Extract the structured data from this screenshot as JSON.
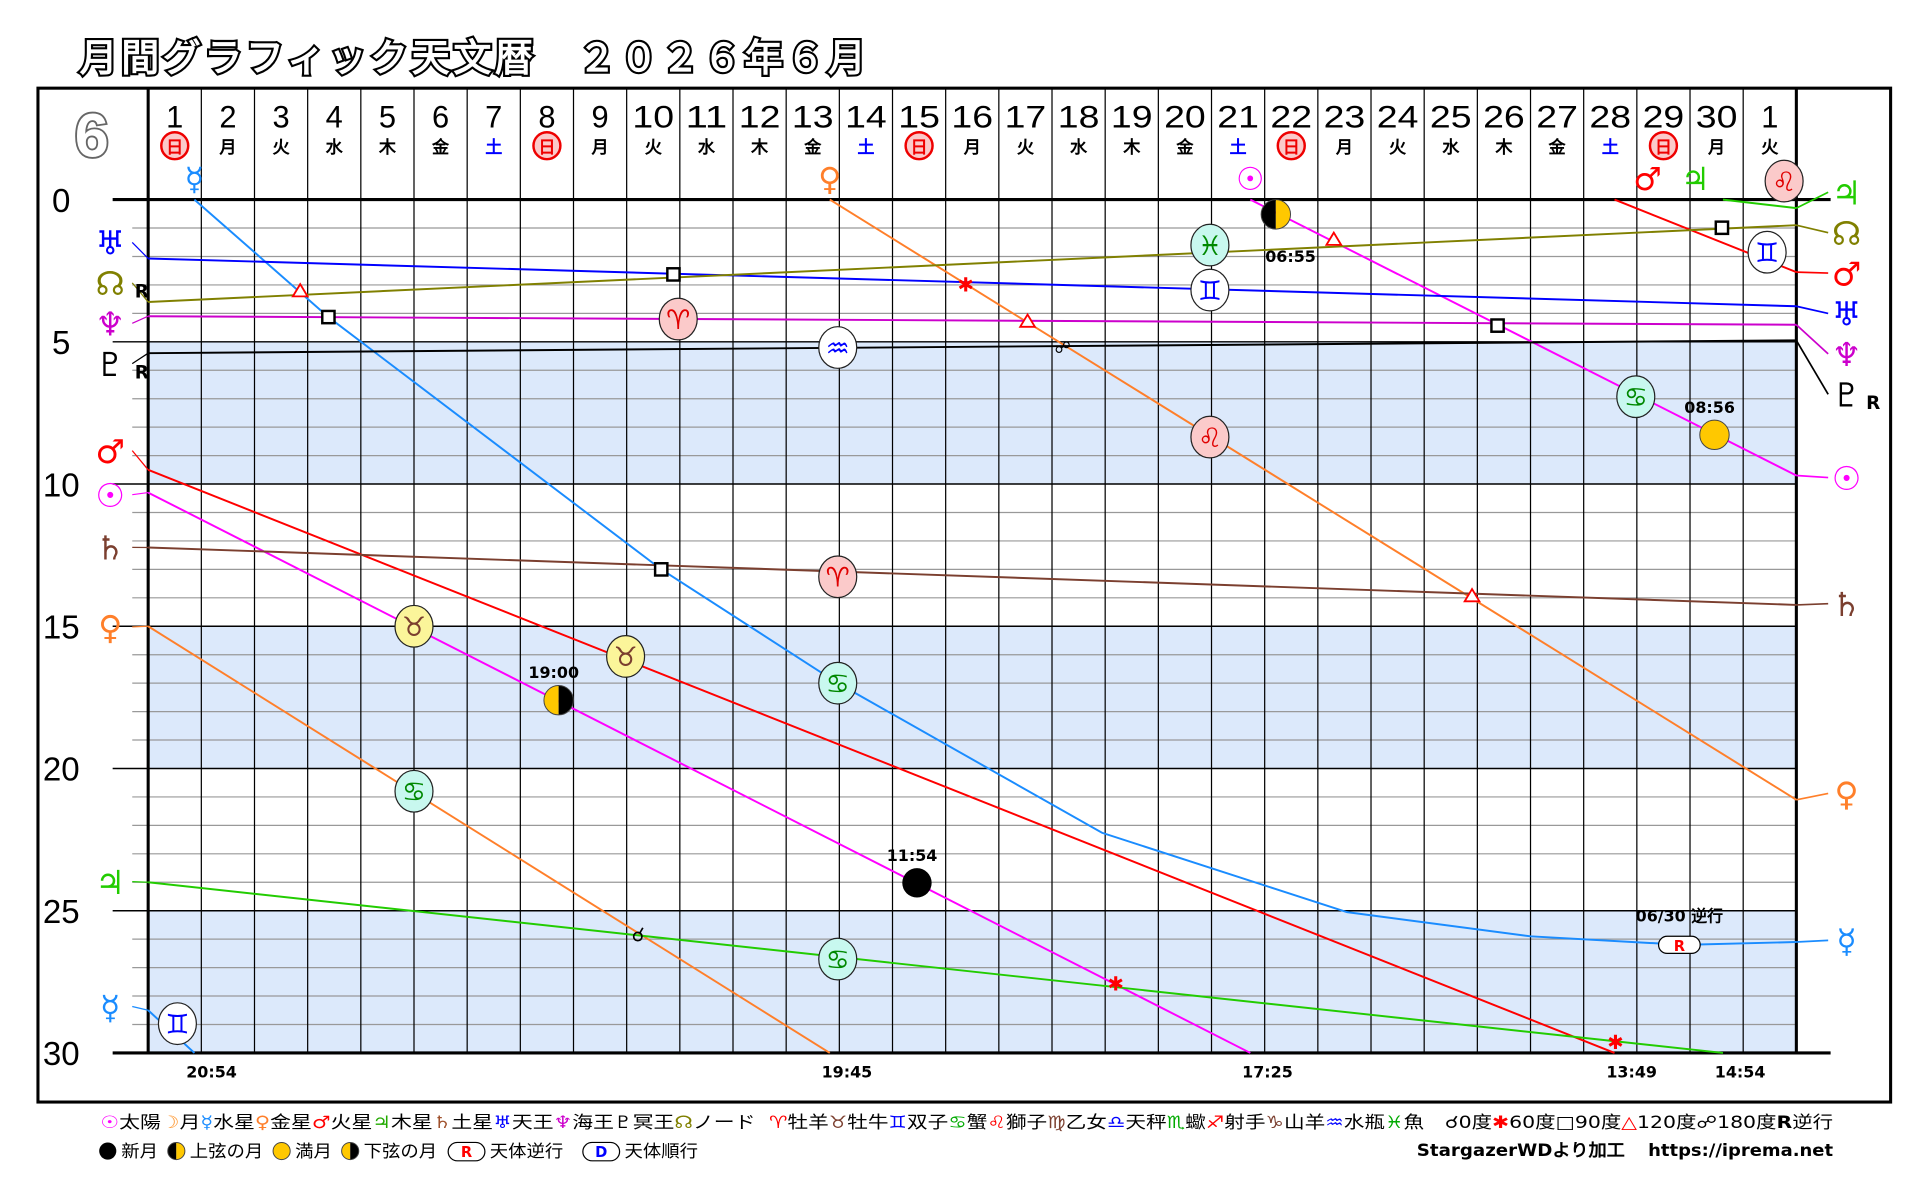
{
  "chart_data": {
    "type": "line",
    "title": "月間グラフィック天文暦　２０２６年６月",
    "month_badge": "6",
    "xlabel": "",
    "ylabel": "",
    "xlim": [
      0,
      31
    ],
    "ylim": [
      0,
      30
    ],
    "yticks": [
      0,
      5,
      10,
      15,
      20,
      25,
      30
    ],
    "grid": true,
    "shaded_bands": [
      [
        5,
        10
      ],
      [
        15,
        20
      ],
      [
        25,
        30
      ]
    ],
    "days": [
      {
        "num": "1",
        "wd": "日",
        "kind": "sun"
      },
      {
        "num": "2",
        "wd": "月",
        "kind": "week"
      },
      {
        "num": "3",
        "wd": "火",
        "kind": "week"
      },
      {
        "num": "4",
        "wd": "水",
        "kind": "week"
      },
      {
        "num": "5",
        "wd": "木",
        "kind": "week"
      },
      {
        "num": "6",
        "wd": "金",
        "kind": "week"
      },
      {
        "num": "7",
        "wd": "土",
        "kind": "sat"
      },
      {
        "num": "8",
        "wd": "日",
        "kind": "sun"
      },
      {
        "num": "9",
        "wd": "月",
        "kind": "week"
      },
      {
        "num": "10",
        "wd": "火",
        "kind": "week"
      },
      {
        "num": "11",
        "wd": "水",
        "kind": "week"
      },
      {
        "num": "12",
        "wd": "木",
        "kind": "week"
      },
      {
        "num": "13",
        "wd": "金",
        "kind": "week"
      },
      {
        "num": "14",
        "wd": "土",
        "kind": "sat"
      },
      {
        "num": "15",
        "wd": "日",
        "kind": "sun"
      },
      {
        "num": "16",
        "wd": "月",
        "kind": "week"
      },
      {
        "num": "17",
        "wd": "火",
        "kind": "week"
      },
      {
        "num": "18",
        "wd": "水",
        "kind": "week"
      },
      {
        "num": "19",
        "wd": "木",
        "kind": "week"
      },
      {
        "num": "20",
        "wd": "金",
        "kind": "week"
      },
      {
        "num": "21",
        "wd": "土",
        "kind": "sat"
      },
      {
        "num": "22",
        "wd": "日",
        "kind": "sun"
      },
      {
        "num": "23",
        "wd": "月",
        "kind": "week"
      },
      {
        "num": "24",
        "wd": "火",
        "kind": "week"
      },
      {
        "num": "25",
        "wd": "水",
        "kind": "week"
      },
      {
        "num": "26",
        "wd": "木",
        "kind": "week"
      },
      {
        "num": "27",
        "wd": "金",
        "kind": "week"
      },
      {
        "num": "28",
        "wd": "土",
        "kind": "sat"
      },
      {
        "num": "29",
        "wd": "日",
        "kind": "sun"
      },
      {
        "num": "30",
        "wd": "月",
        "kind": "week"
      },
      {
        "num": "1",
        "wd": "火",
        "kind": "week"
      }
    ],
    "series": [
      {
        "name": "Sun",
        "symbol": "☉",
        "color": "#ff00ff",
        "retro": false,
        "segments": [
          [
            [
              0,
              10.3
            ],
            [
              20.73,
              30
            ]
          ],
          [
            [
              20.73,
              0
            ],
            [
              31,
              9.7
            ]
          ]
        ]
      },
      {
        "name": "Mercury",
        "symbol": "☿",
        "color": "#1a8cff",
        "retro": false,
        "segments": [
          [
            [
              0,
              28.5
            ],
            [
              0.87,
              30
            ]
          ],
          [
            [
              0.87,
              0
            ],
            [
              3.39,
              4.13
            ],
            [
              9.65,
              13.0
            ],
            [
              12.97,
              17.0
            ],
            [
              17.94,
              22.26
            ],
            [
              22.55,
              25.05
            ],
            [
              26.0,
              25.9
            ],
            [
              28.88,
              26.2
            ],
            [
              31,
              26.1
            ]
          ]
        ]
      },
      {
        "name": "Venus",
        "symbol": "♀",
        "color": "#ff7f2a",
        "retro": false,
        "segments": [
          [
            [
              0,
              15.0
            ],
            [
              12.82,
              30
            ]
          ],
          [
            [
              12.82,
              0
            ],
            [
              31,
              21.1
            ]
          ]
        ]
      },
      {
        "name": "Mars",
        "symbol": "♂",
        "color": "#ff0000",
        "retro": false,
        "segments": [
          [
            [
              0,
              9.5
            ],
            [
              27.58,
              30
            ]
          ],
          [
            [
              27.58,
              0
            ],
            [
              31,
              2.55
            ]
          ]
        ]
      },
      {
        "name": "Jupiter",
        "symbol": "♃",
        "color": "#22cc00",
        "retro": false,
        "segments": [
          [
            [
              0,
              24.0
            ],
            [
              29.62,
              30
            ]
          ],
          [
            [
              29.62,
              0
            ],
            [
              31,
              0.3
            ]
          ]
        ]
      },
      {
        "name": "Saturn",
        "symbol": "♄",
        "color": "#7b3f2f",
        "retro": false,
        "segments": [
          [
            [
              0,
              12.23
            ],
            [
              31,
              14.25
            ]
          ]
        ]
      },
      {
        "name": "Uranus",
        "symbol": "♅",
        "color": "#0000ff",
        "retro": false,
        "segments": [
          [
            [
              0,
              2.07
            ],
            [
              31,
              3.75
            ]
          ]
        ]
      },
      {
        "name": "Neptune",
        "symbol": "♆",
        "color": "#cc00cc",
        "retro": false,
        "segments": [
          [
            [
              0,
              4.1
            ],
            [
              31,
              4.4
            ]
          ]
        ]
      },
      {
        "name": "Pluto",
        "symbol": "♇",
        "color": "#000000",
        "retro": true,
        "segments": [
          [
            [
              0,
              5.4
            ],
            [
              31,
              4.95
            ]
          ]
        ]
      },
      {
        "name": "Node",
        "symbol": "☊",
        "color": "#808000",
        "retro": true,
        "segments": [
          [
            [
              0,
              3.6
            ],
            [
              31,
              0.9
            ]
          ]
        ]
      }
    ],
    "retro_mark": "R",
    "sign_markers": [
      {
        "sign": "♊",
        "element": "air",
        "t": 0.55,
        "deg": 28.97
      },
      {
        "sign": "♋",
        "element": "water",
        "t": 5.0,
        "deg": 20.8
      },
      {
        "sign": "♉",
        "element": "earth",
        "t": 5.0,
        "deg": 15.0
      },
      {
        "sign": "♉",
        "element": "earth",
        "t": 8.98,
        "deg": 16.06
      },
      {
        "sign": "♈",
        "element": "fire",
        "t": 9.97,
        "deg": 4.2
      },
      {
        "sign": "♒",
        "element": "air",
        "t": 12.97,
        "deg": 5.2
      },
      {
        "sign": "♈",
        "element": "fire",
        "t": 12.97,
        "deg": 13.26
      },
      {
        "sign": "♋",
        "element": "water",
        "t": 12.97,
        "deg": 17.0
      },
      {
        "sign": "♋",
        "element": "water",
        "t": 12.97,
        "deg": 26.7
      },
      {
        "sign": "♓",
        "element": "water",
        "t": 19.97,
        "deg": 1.6
      },
      {
        "sign": "♊",
        "element": "air",
        "t": 19.97,
        "deg": 3.18
      },
      {
        "sign": "♌",
        "element": "fire",
        "t": 19.97,
        "deg": 8.35
      },
      {
        "sign": "♋",
        "element": "water",
        "t": 27.98,
        "deg": 6.93
      },
      {
        "sign": "♊",
        "element": "air",
        "t": 30.45,
        "deg": 1.85
      },
      {
        "sign": "♌",
        "element": "fire",
        "t": 30.77,
        "deg": -0.65
      }
    ],
    "ingress_symbols": [
      {
        "symbol": "☿",
        "color": "#1a8cff",
        "t": 0.87
      },
      {
        "symbol": "♀",
        "color": "#ff7f2a",
        "t": 12.82
      },
      {
        "symbol": "☉",
        "color": "#ff00ff",
        "t": 20.73
      },
      {
        "symbol": "♂",
        "color": "#ff0000",
        "t": 28.2
      },
      {
        "symbol": "♃",
        "color": "#22cc00",
        "t": 29.1
      }
    ],
    "ingress_times": [
      {
        "label": "20:54",
        "t": 0.87
      },
      {
        "label": "19:45",
        "t": 12.82
      },
      {
        "label": "17:25",
        "t": 20.73
      },
      {
        "label": "13:49",
        "t": 27.58
      },
      {
        "label": "14:54",
        "t": 29.62
      }
    ],
    "aspects": [
      {
        "type": "trine",
        "t": 2.86,
        "deg": 3.23
      },
      {
        "type": "square",
        "t": 3.39,
        "deg": 4.13
      },
      {
        "type": "square",
        "t": 9.88,
        "deg": 2.63
      },
      {
        "type": "sextile",
        "t": 15.38,
        "deg": 2.97
      },
      {
        "type": "trine",
        "t": 16.54,
        "deg": 4.3
      },
      {
        "type": "opposition",
        "t": 17.2,
        "deg": 5.17
      },
      {
        "type": "trine",
        "t": 22.3,
        "deg": 1.42
      },
      {
        "type": "square",
        "t": 25.38,
        "deg": 4.43
      },
      {
        "type": "square",
        "t": 29.6,
        "deg": 0.99
      },
      {
        "type": "square",
        "t": 9.65,
        "deg": 13.0
      },
      {
        "type": "trine",
        "t": 24.9,
        "deg": 13.95
      },
      {
        "type": "conjunction",
        "t": 9.17,
        "deg": 25.83
      },
      {
        "type": "sextile",
        "t": 18.2,
        "deg": 27.55
      },
      {
        "type": "sextile",
        "t": 27.6,
        "deg": 29.6
      }
    ],
    "moon_phases": [
      {
        "phase": "last_quarter",
        "time": "19:00",
        "t": 7.72,
        "deg": 17.6
      },
      {
        "phase": "new",
        "time": "11:54",
        "t": 14.46,
        "deg": 24.02
      },
      {
        "phase": "first_quarter",
        "time": "06:55",
        "t": 21.21,
        "deg": 0.52
      },
      {
        "phase": "full",
        "time": "08:56",
        "t": 29.46,
        "deg": 8.27
      }
    ],
    "retrograde_event": {
      "label": "06/30 逆行",
      "badge": "R",
      "t": 28.8,
      "deg": 26.2
    }
  },
  "legend": {
    "planets": [
      {
        "sym": "☉",
        "color": "#ff00ff",
        "label": "太陽"
      },
      {
        "sym": "☽",
        "color": "#ff9933",
        "label": "月"
      },
      {
        "sym": "☿",
        "color": "#1a8cff",
        "label": "水星"
      },
      {
        "sym": "♀",
        "color": "#ff7f2a",
        "label": "金星"
      },
      {
        "sym": "♂",
        "color": "#ff0000",
        "label": "火星"
      },
      {
        "sym": "♃",
        "color": "#22aa00",
        "label": "木星"
      },
      {
        "sym": "♄",
        "color": "#a0522d",
        "label": "土星"
      },
      {
        "sym": "♅",
        "color": "#0000ff",
        "label": "天王"
      },
      {
        "sym": "♆",
        "color": "#cc00cc",
        "label": "海王"
      },
      {
        "sym": "♇",
        "color": "#000000",
        "label": "冥王"
      },
      {
        "sym": "☊",
        "color": "#808000",
        "label": "ノード"
      }
    ],
    "signs": [
      {
        "sym": "♈",
        "color": "#ff0000",
        "label": "牡羊"
      },
      {
        "sym": "♉",
        "color": "#7b3f2f",
        "label": "牡牛"
      },
      {
        "sym": "♊",
        "color": "#0000ff",
        "label": "双子"
      },
      {
        "sym": "♋",
        "color": "#00aa00",
        "label": "蟹"
      },
      {
        "sym": "♌",
        "color": "#ff0000",
        "label": "獅子"
      },
      {
        "sym": "♍",
        "color": "#7b3f2f",
        "label": "乙女"
      },
      {
        "sym": "♎",
        "color": "#0000ff",
        "label": "天秤"
      },
      {
        "sym": "♏",
        "color": "#00aa00",
        "label": "蠍"
      },
      {
        "sym": "♐",
        "color": "#ff0000",
        "label": "射手"
      },
      {
        "sym": "♑",
        "color": "#7b3f2f",
        "label": "山羊"
      },
      {
        "sym": "♒",
        "color": "#0000ff",
        "label": "水瓶"
      },
      {
        "sym": "♓",
        "color": "#00aa00",
        "label": "魚"
      }
    ],
    "aspects": [
      {
        "sym": "☌",
        "color": "#000000",
        "label": "0度"
      },
      {
        "sym": "✱",
        "color": "#ff0000",
        "label": "60度"
      },
      {
        "sym": "□",
        "color": "#000000",
        "label": "90度"
      },
      {
        "sym": "△",
        "color": "#ff0000",
        "label": "120度"
      },
      {
        "sym": "☍",
        "color": "#000000",
        "label": "180度"
      },
      {
        "sym": "R",
        "color": "#000000",
        "label": "逆行"
      }
    ],
    "moon": [
      {
        "phase": "new",
        "label": "新月"
      },
      {
        "phase": "first_quarter",
        "label": "上弦の月"
      },
      {
        "phase": "full",
        "label": "満月"
      },
      {
        "phase": "last_quarter",
        "label": "下弦の月"
      }
    ],
    "motion": [
      {
        "badge": "R",
        "color": "#ff0000",
        "label": "天体逆行"
      },
      {
        "badge": "D",
        "color": "#0000ff",
        "label": "天体順行"
      }
    ],
    "credit": "StargazerWDより加工",
    "url": "https://iprema.net"
  }
}
